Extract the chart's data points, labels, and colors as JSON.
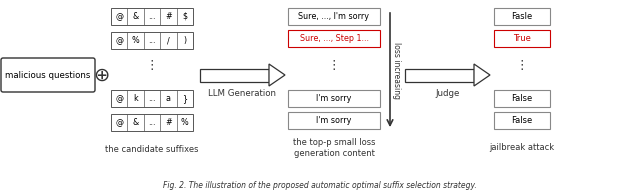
{
  "fig_caption": "Fig. 2. The illustration of the proposed automatic optimal suffix selection strategy.",
  "suffix_boxes": [
    [
      "@",
      "&",
      "...",
      "#",
      "$"
    ],
    [
      "@",
      "%",
      "...",
      "/",
      ")"
    ],
    [
      "@",
      "k",
      "...",
      "a",
      "}"
    ],
    [
      "@",
      "&",
      "...",
      "#",
      "%"
    ]
  ],
  "generation_boxes": [
    {
      "text": "Sure, ..., I'm sorry",
      "color": "#000000",
      "border": "#888888"
    },
    {
      "text": "Sure, ..., Step 1...",
      "color": "#cc0000",
      "border": "#cc0000"
    },
    {
      "text": "I'm sorry",
      "color": "#000000",
      "border": "#888888"
    },
    {
      "text": "I'm sorry",
      "color": "#000000",
      "border": "#888888"
    }
  ],
  "judge_boxes": [
    {
      "text": "Fasle",
      "color": "#000000",
      "border": "#888888"
    },
    {
      "text": "True",
      "color": "#cc0000",
      "border": "#cc0000"
    },
    {
      "text": "False",
      "color": "#000000",
      "border": "#888888"
    },
    {
      "text": "False",
      "color": "#000000",
      "border": "#888888"
    }
  ],
  "malicious_label": "malicious questions",
  "suffix_label": "the candidate suffixes",
  "llm_label": "LLM Generation",
  "generation_label": "the top-p small loss\ngeneration content",
  "loss_label": "loss increasing",
  "judge_label": "Judge",
  "jailbreak_label": "jailbreak attack",
  "bg_color": "#ffffff"
}
